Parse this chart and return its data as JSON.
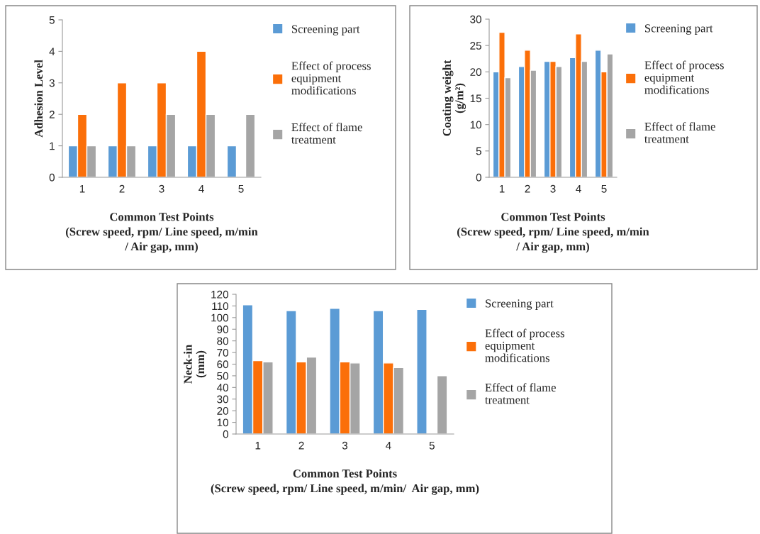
{
  "chart_data": [
    {
      "type": "bar",
      "categories": [
        "1",
        "2",
        "3",
        "4",
        "5"
      ],
      "xlabel": "Common Test Points\n(Screw speed, rpm/ Line speed, m/min\n/ Air gap, mm)",
      "ylabel": "Adhesion Level",
      "ylim": [
        0,
        5
      ],
      "yticks": [
        0,
        1,
        2,
        3,
        4,
        5
      ],
      "grid": false,
      "legend": "right",
      "series": [
        {
          "name": "Screening part",
          "color": "#5b9bd5",
          "values": [
            1,
            1,
            1,
            1,
            1
          ]
        },
        {
          "name": "Effect of process\nequipment\nmodifications",
          "color": "#fb6f09",
          "values": [
            2,
            3,
            3,
            4,
            null
          ]
        },
        {
          "name": "Effect of flame\ntreatment",
          "color": "#a5a5a5",
          "values": [
            1,
            1,
            2,
            2,
            2
          ]
        }
      ]
    },
    {
      "type": "bar",
      "categories": [
        "1",
        "2",
        "3",
        "4",
        "5"
      ],
      "xlabel": "Common Test Points\n(Screw speed, rpm/ Line speed, m/min\n/ Air gap, mm)",
      "ylabel": "Coating weight\n(g/m²)",
      "ylim": [
        0,
        30
      ],
      "yticks": [
        0,
        5,
        10,
        15,
        20,
        25,
        30
      ],
      "grid": false,
      "legend": "right",
      "series": [
        {
          "name": "Screening part",
          "color": "#5b9bd5",
          "values": [
            20,
            21,
            22,
            22.7,
            24.1
          ]
        },
        {
          "name": "Effect of process\nequipment\nmodifications",
          "color": "#fb6f09",
          "values": [
            27.5,
            24.1,
            22,
            27.2,
            20
          ]
        },
        {
          "name": "Effect of flame\ntreatment",
          "color": "#a5a5a5",
          "values": [
            18.9,
            20.3,
            21,
            22,
            23.4
          ]
        }
      ]
    },
    {
      "type": "bar",
      "categories": [
        "1",
        "2",
        "3",
        "4",
        "5"
      ],
      "xlabel": "Common Test Points\n(Screw speed, rpm/ Line speed, m/min/  Air gap, mm)",
      "ylabel": "Neck-in\n(mm)",
      "ylim": [
        0,
        120
      ],
      "yticks": [
        0,
        10,
        20,
        30,
        40,
        50,
        60,
        70,
        80,
        90,
        100,
        110,
        120
      ],
      "grid": false,
      "legend": "right",
      "series": [
        {
          "name": "Screening part",
          "color": "#5b9bd5",
          "values": [
            111,
            106,
            108,
            106,
            107
          ]
        },
        {
          "name": "Effect of process\nequipment\nmodifications",
          "color": "#fb6f09",
          "values": [
            63,
            62,
            62,
            61,
            null
          ]
        },
        {
          "name": "Effect of flame\ntreatment",
          "color": "#a5a5a5",
          "values": [
            62,
            66,
            61,
            57,
            50
          ]
        }
      ]
    }
  ]
}
